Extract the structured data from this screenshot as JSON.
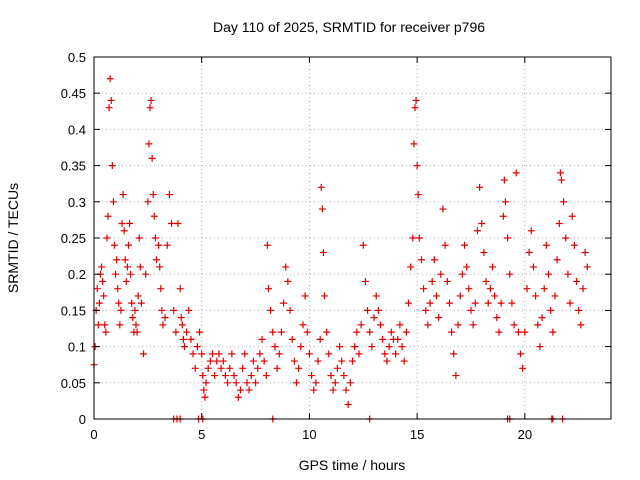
{
  "chart_data": {
    "type": "scatter",
    "title": "Day 110 of 2025, SRMTID for receiver p796",
    "xlabel": "GPS time / hours",
    "ylabel": "SRMTID / TECUs",
    "xlim": [
      0,
      24
    ],
    "ylim": [
      0,
      0.5
    ],
    "xticks": [
      0,
      5,
      10,
      15,
      20
    ],
    "xtick_labels": [
      "0",
      "5",
      "10",
      "15",
      "20"
    ],
    "yticks": [
      0,
      0.05,
      0.1,
      0.15,
      0.2,
      0.25,
      0.3,
      0.35,
      0.4,
      0.45,
      0.5
    ],
    "ytick_labels": [
      "0",
      "0.05",
      "0.1",
      "0.15",
      "0.2",
      "0.25",
      "0.3",
      "0.35",
      "0.4",
      "0.45",
      "0.5"
    ],
    "grid": true,
    "marker": "+",
    "series": [
      {
        "name": "SRMTID",
        "color": "#e00000",
        "points": [
          [
            0.0,
            0.075
          ],
          [
            0.05,
            0.1
          ],
          [
            0.1,
            0.15
          ],
          [
            0.15,
            0.18
          ],
          [
            0.2,
            0.13
          ],
          [
            0.25,
            0.16
          ],
          [
            0.3,
            0.2
          ],
          [
            0.35,
            0.21
          ],
          [
            0.4,
            0.19
          ],
          [
            0.45,
            0.17
          ],
          [
            0.5,
            0.13
          ],
          [
            0.55,
            0.12
          ],
          [
            0.6,
            0.25
          ],
          [
            0.65,
            0.28
          ],
          [
            0.7,
            0.43
          ],
          [
            0.75,
            0.47
          ],
          [
            0.8,
            0.44
          ],
          [
            0.85,
            0.35
          ],
          [
            0.9,
            0.3
          ],
          [
            0.95,
            0.24
          ],
          [
            1.0,
            0.2
          ],
          [
            1.05,
            0.22
          ],
          [
            1.1,
            0.18
          ],
          [
            1.15,
            0.16
          ],
          [
            1.2,
            0.13
          ],
          [
            1.25,
            0.15
          ],
          [
            1.3,
            0.27
          ],
          [
            1.35,
            0.31
          ],
          [
            1.4,
            0.26
          ],
          [
            1.45,
            0.22
          ],
          [
            1.5,
            0.19
          ],
          [
            1.55,
            0.21
          ],
          [
            1.6,
            0.24
          ],
          [
            1.65,
            0.27
          ],
          [
            1.7,
            0.2
          ],
          [
            1.75,
            0.16
          ],
          [
            1.8,
            0.14
          ],
          [
            1.85,
            0.12
          ],
          [
            1.9,
            0.15
          ],
          [
            1.95,
            0.13
          ],
          [
            2.0,
            0.12
          ],
          [
            2.05,
            0.17
          ],
          [
            2.1,
            0.25
          ],
          [
            2.15,
            0.21
          ],
          [
            2.2,
            0.16
          ],
          [
            2.3,
            0.09
          ],
          [
            2.4,
            0.2
          ],
          [
            2.5,
            0.3
          ],
          [
            2.55,
            0.38
          ],
          [
            2.6,
            0.43
          ],
          [
            2.65,
            0.44
          ],
          [
            2.7,
            0.36
          ],
          [
            2.75,
            0.31
          ],
          [
            2.8,
            0.28
          ],
          [
            2.85,
            0.25
          ],
          [
            2.9,
            0.22
          ],
          [
            3.0,
            0.24
          ],
          [
            3.05,
            0.21
          ],
          [
            3.1,
            0.18
          ],
          [
            3.15,
            0.15
          ],
          [
            3.2,
            0.13
          ],
          [
            3.3,
            0.14
          ],
          [
            3.4,
            0.24
          ],
          [
            3.5,
            0.31
          ],
          [
            3.6,
            0.27
          ],
          [
            3.7,
            0.15
          ],
          [
            3.8,
            0.12
          ],
          [
            3.9,
            0.27
          ],
          [
            4.0,
            0.18
          ],
          [
            4.05,
            0.14
          ],
          [
            4.1,
            0.13
          ],
          [
            4.15,
            0.11
          ],
          [
            4.2,
            0.1
          ],
          [
            4.3,
            0.12
          ],
          [
            4.4,
            0.15
          ],
          [
            4.5,
            0.11
          ],
          [
            4.6,
            0.09
          ],
          [
            4.7,
            0.07
          ],
          [
            4.8,
            0.1
          ],
          [
            4.9,
            0.12
          ],
          [
            5.0,
            0.09
          ],
          [
            5.05,
            0.06
          ],
          [
            5.1,
            0.04
          ],
          [
            5.15,
            0.03
          ],
          [
            5.2,
            0.05
          ],
          [
            5.3,
            0.07
          ],
          [
            5.4,
            0.08
          ],
          [
            5.5,
            0.09
          ],
          [
            5.6,
            0.06
          ],
          [
            5.7,
            0.08
          ],
          [
            5.8,
            0.09
          ],
          [
            5.9,
            0.07
          ],
          [
            6.0,
            0.08
          ],
          [
            6.1,
            0.06
          ],
          [
            6.2,
            0.05
          ],
          [
            6.3,
            0.07
          ],
          [
            6.4,
            0.09
          ],
          [
            6.5,
            0.06
          ],
          [
            6.6,
            0.05
          ],
          [
            6.7,
            0.03
          ],
          [
            6.8,
            0.04
          ],
          [
            6.9,
            0.07
          ],
          [
            7.0,
            0.09
          ],
          [
            7.1,
            0.05
          ],
          [
            7.2,
            0.04
          ],
          [
            7.3,
            0.06
          ],
          [
            7.4,
            0.08
          ],
          [
            7.5,
            0.05
          ],
          [
            7.6,
            0.07
          ],
          [
            7.7,
            0.09
          ],
          [
            7.8,
            0.11
          ],
          [
            7.9,
            0.08
          ],
          [
            8.0,
            0.06
          ],
          [
            8.05,
            0.24
          ],
          [
            8.1,
            0.18
          ],
          [
            8.2,
            0.15
          ],
          [
            8.3,
            0.12
          ],
          [
            8.4,
            0.1
          ],
          [
            8.5,
            0.07
          ],
          [
            8.6,
            0.09
          ],
          [
            8.7,
            0.12
          ],
          [
            8.8,
            0.16
          ],
          [
            8.9,
            0.21
          ],
          [
            9.0,
            0.19
          ],
          [
            9.1,
            0.15
          ],
          [
            9.2,
            0.11
          ],
          [
            9.3,
            0.08
          ],
          [
            9.4,
            0.05
          ],
          [
            9.5,
            0.07
          ],
          [
            9.6,
            0.1
          ],
          [
            9.7,
            0.13
          ],
          [
            9.8,
            0.17
          ],
          [
            9.9,
            0.12
          ],
          [
            10.0,
            0.09
          ],
          [
            10.1,
            0.06
          ],
          [
            10.2,
            0.04
          ],
          [
            10.3,
            0.05
          ],
          [
            10.4,
            0.08
          ],
          [
            10.5,
            0.11
          ],
          [
            10.55,
            0.32
          ],
          [
            10.6,
            0.29
          ],
          [
            10.65,
            0.23
          ],
          [
            10.7,
            0.17
          ],
          [
            10.8,
            0.12
          ],
          [
            10.9,
            0.09
          ],
          [
            11.0,
            0.06
          ],
          [
            11.1,
            0.04
          ],
          [
            11.2,
            0.05
          ],
          [
            11.3,
            0.07
          ],
          [
            11.4,
            0.1
          ],
          [
            11.5,
            0.08
          ],
          [
            11.6,
            0.06
          ],
          [
            11.7,
            0.04
          ],
          [
            11.8,
            0.02
          ],
          [
            11.9,
            0.05
          ],
          [
            12.0,
            0.08
          ],
          [
            12.1,
            0.1
          ],
          [
            12.2,
            0.12
          ],
          [
            12.3,
            0.09
          ],
          [
            12.4,
            0.13
          ],
          [
            12.5,
            0.24
          ],
          [
            12.6,
            0.19
          ],
          [
            12.7,
            0.15
          ],
          [
            12.8,
            0.12
          ],
          [
            12.9,
            0.1
          ],
          [
            13.0,
            0.14
          ],
          [
            13.1,
            0.17
          ],
          [
            13.2,
            0.15
          ],
          [
            13.3,
            0.13
          ],
          [
            13.4,
            0.11
          ],
          [
            13.5,
            0.09
          ],
          [
            13.6,
            0.08
          ],
          [
            13.7,
            0.1
          ],
          [
            13.8,
            0.12
          ],
          [
            13.9,
            0.11
          ],
          [
            14.0,
            0.09
          ],
          [
            14.1,
            0.11
          ],
          [
            14.2,
            0.13
          ],
          [
            14.3,
            0.1
          ],
          [
            14.4,
            0.08
          ],
          [
            14.5,
            0.12
          ],
          [
            14.6,
            0.16
          ],
          [
            14.7,
            0.21
          ],
          [
            14.8,
            0.25
          ],
          [
            14.85,
            0.38
          ],
          [
            14.9,
            0.43
          ],
          [
            14.95,
            0.44
          ],
          [
            15.0,
            0.35
          ],
          [
            15.05,
            0.31
          ],
          [
            15.1,
            0.25
          ],
          [
            15.2,
            0.22
          ],
          [
            15.3,
            0.18
          ],
          [
            15.4,
            0.15
          ],
          [
            15.5,
            0.13
          ],
          [
            15.6,
            0.16
          ],
          [
            15.7,
            0.19
          ],
          [
            15.8,
            0.22
          ],
          [
            15.9,
            0.17
          ],
          [
            16.0,
            0.14
          ],
          [
            16.1,
            0.2
          ],
          [
            16.2,
            0.29
          ],
          [
            16.3,
            0.24
          ],
          [
            16.4,
            0.19
          ],
          [
            16.5,
            0.16
          ],
          [
            16.6,
            0.12
          ],
          [
            16.7,
            0.09
          ],
          [
            16.8,
            0.06
          ],
          [
            16.9,
            0.13
          ],
          [
            17.0,
            0.17
          ],
          [
            17.1,
            0.2
          ],
          [
            17.2,
            0.24
          ],
          [
            17.3,
            0.21
          ],
          [
            17.4,
            0.18
          ],
          [
            17.5,
            0.15
          ],
          [
            17.6,
            0.13
          ],
          [
            17.7,
            0.16
          ],
          [
            17.8,
            0.26
          ],
          [
            17.9,
            0.32
          ],
          [
            18.0,
            0.27
          ],
          [
            18.1,
            0.23
          ],
          [
            18.2,
            0.19
          ],
          [
            18.3,
            0.16
          ],
          [
            18.4,
            0.18
          ],
          [
            18.5,
            0.21
          ],
          [
            18.6,
            0.17
          ],
          [
            18.7,
            0.14
          ],
          [
            18.8,
            0.12
          ],
          [
            18.9,
            0.16
          ],
          [
            19.0,
            0.28
          ],
          [
            19.05,
            0.33
          ],
          [
            19.1,
            0.3
          ],
          [
            19.2,
            0.25
          ],
          [
            19.3,
            0.2
          ],
          [
            19.4,
            0.16
          ],
          [
            19.5,
            0.13
          ],
          [
            19.6,
            0.34
          ],
          [
            19.7,
            0.12
          ],
          [
            19.8,
            0.09
          ],
          [
            19.9,
            0.07
          ],
          [
            20.0,
            0.12
          ],
          [
            20.1,
            0.18
          ],
          [
            20.2,
            0.23
          ],
          [
            20.3,
            0.26
          ],
          [
            20.4,
            0.21
          ],
          [
            20.5,
            0.17
          ],
          [
            20.6,
            0.13
          ],
          [
            20.7,
            0.1
          ],
          [
            20.8,
            0.14
          ],
          [
            20.9,
            0.18
          ],
          [
            21.0,
            0.24
          ],
          [
            21.1,
            0.2
          ],
          [
            21.2,
            0.15
          ],
          [
            21.3,
            0.12
          ],
          [
            21.4,
            0.17
          ],
          [
            21.5,
            0.22
          ],
          [
            21.6,
            0.27
          ],
          [
            21.65,
            0.34
          ],
          [
            21.7,
            0.33
          ],
          [
            21.8,
            0.3
          ],
          [
            21.9,
            0.25
          ],
          [
            22.0,
            0.2
          ],
          [
            22.1,
            0.16
          ],
          [
            22.2,
            0.28
          ],
          [
            22.3,
            0.24
          ],
          [
            22.4,
            0.19
          ],
          [
            22.5,
            0.15
          ],
          [
            22.6,
            0.13
          ],
          [
            22.7,
            0.18
          ],
          [
            22.8,
            0.23
          ],
          [
            22.9,
            0.21
          ]
        ]
      }
    ],
    "zero_markers_x": [
      3.7,
      3.85,
      4.0,
      4.85,
      5.05,
      8.3,
      12.8,
      19.2,
      19.3,
      21.25,
      21.3,
      21.75
    ]
  }
}
